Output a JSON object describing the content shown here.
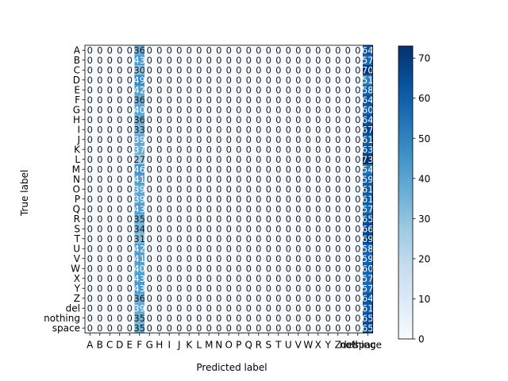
{
  "chart_data": {
    "type": "heatmap",
    "title": "",
    "xlabel": "Predicted label",
    "ylabel": "True label",
    "labels": [
      "A",
      "B",
      "C",
      "D",
      "E",
      "F",
      "G",
      "H",
      "I",
      "J",
      "K",
      "L",
      "M",
      "N",
      "O",
      "P",
      "Q",
      "R",
      "S",
      "T",
      "U",
      "V",
      "W",
      "X",
      "Y",
      "Z",
      "del",
      "nothing",
      "space"
    ],
    "predicted_nonzero_columns": [
      "F",
      "space"
    ],
    "values_col_F": [
      36,
      43,
      30,
      49,
      42,
      36,
      40,
      36,
      33,
      39,
      37,
      27,
      46,
      41,
      39,
      39,
      43,
      35,
      34,
      31,
      42,
      41,
      40,
      43,
      43,
      36,
      39,
      35,
      35
    ],
    "values_col_space": [
      64,
      57,
      70,
      51,
      58,
      64,
      60,
      64,
      67,
      61,
      63,
      73,
      54,
      59,
      61,
      61,
      57,
      65,
      66,
      69,
      58,
      59,
      60,
      57,
      57,
      64,
      61,
      65,
      65
    ],
    "other_cells_value": 0,
    "colormap": "Blues",
    "colorbar": {
      "min": 0,
      "max": 73,
      "ticks": [
        0,
        10,
        20,
        30,
        40,
        50,
        60,
        70
      ]
    },
    "grid": false
  }
}
